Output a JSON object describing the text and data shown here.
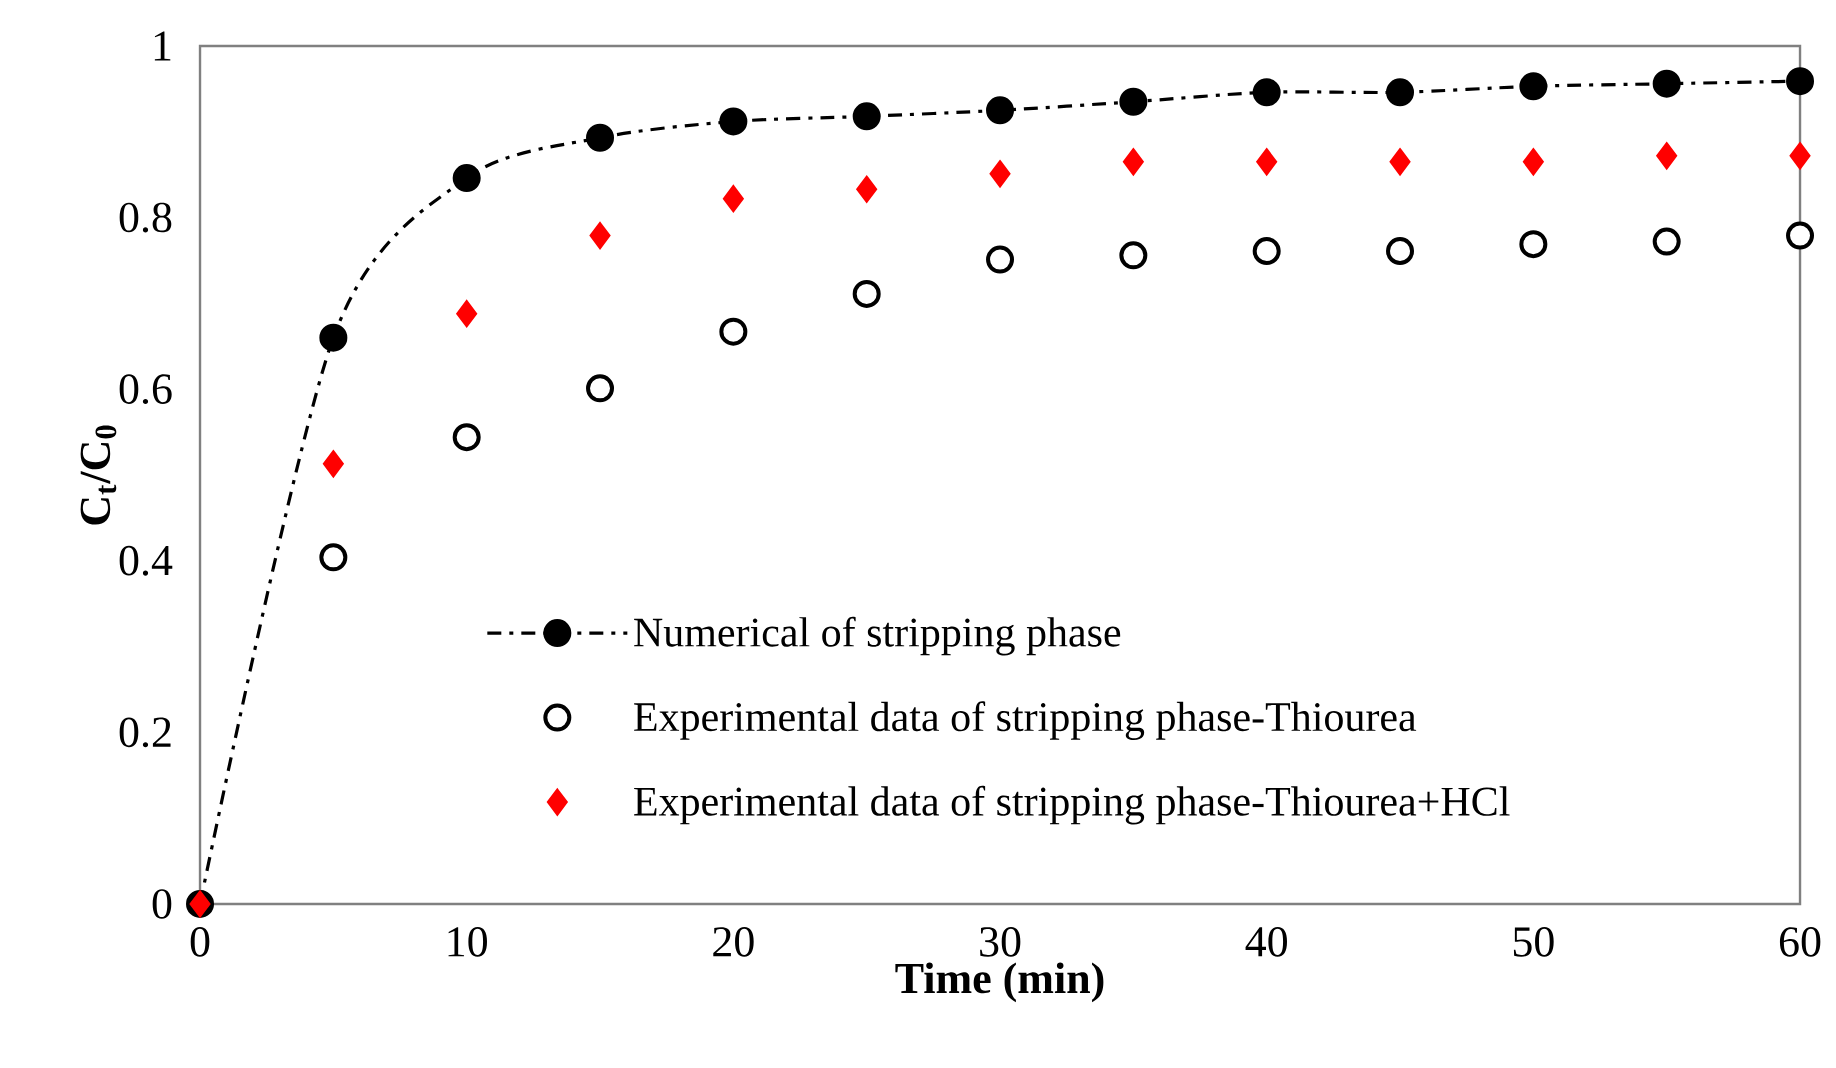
{
  "chart_data": {
    "type": "scatter",
    "xlabel": "Time (min)",
    "ylabel": "C$_{t}$/C$_{0}$",
    "x": [
      0,
      5,
      10,
      15,
      20,
      25,
      30,
      35,
      40,
      45,
      50,
      55,
      60
    ],
    "series": [
      {
        "name": "Numerical of stripping phase",
        "type": "line",
        "color": "#000000",
        "marker": "circle",
        "line_style": "dashdot",
        "values": [
          0,
          0.66,
          0.846,
          0.893,
          0.912,
          0.918,
          0.925,
          0.935,
          0.946,
          0.946,
          0.953,
          0.956,
          0.959
        ]
      },
      {
        "name": "Experimental data of stripping phase-Thiourea",
        "color": "#000000",
        "marker": "circle",
        "values": [
          null,
          0.404,
          0.544,
          0.601,
          0.667,
          0.711,
          0.751,
          0.756,
          0.761,
          0.761,
          0.769,
          0.772,
          0.779
        ]
      },
      {
        "name": "Experimental data  of stripping phase-Thiourea+HCl",
        "color": "#ff0000",
        "marker": "diamond",
        "values": [
          0,
          0.513,
          0.688,
          0.779,
          0.822,
          0.833,
          0.851,
          0.865,
          0.865,
          0.865,
          0.865,
          0.872,
          0.872
        ]
      }
    ],
    "xlim": [
      0,
      60
    ],
    "ylim": [
      0,
      1
    ],
    "xticks": [
      0,
      10,
      20,
      30,
      40,
      50,
      60
    ],
    "yticks": [
      0,
      0.2,
      0.4,
      0.6,
      0.8,
      1
    ],
    "grid": false,
    "legend": "bottom"
  }
}
